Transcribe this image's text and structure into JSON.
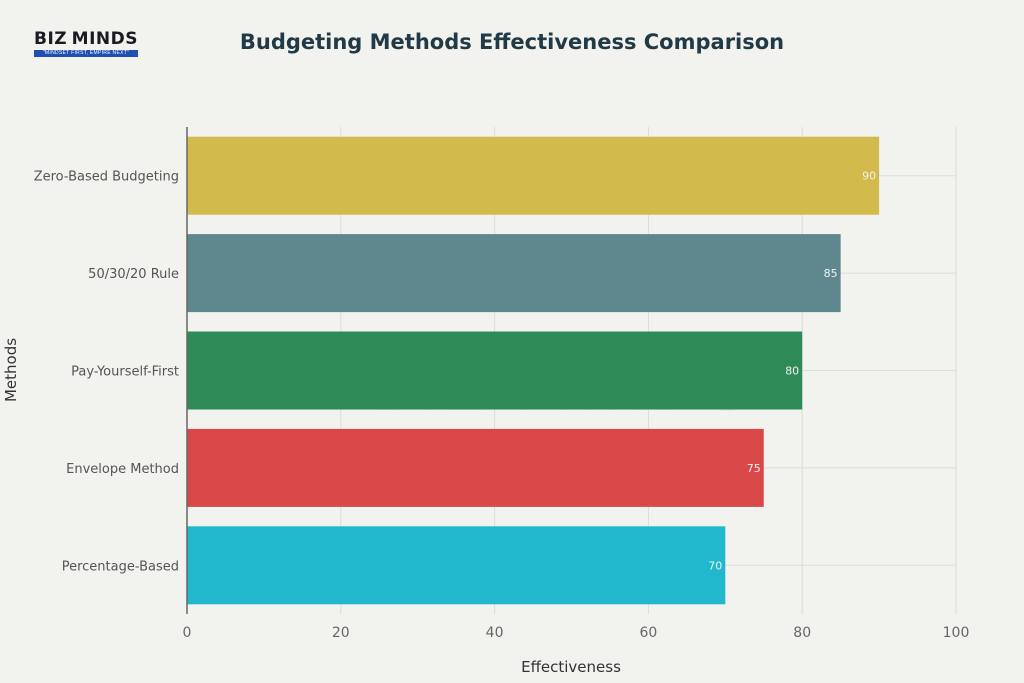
{
  "logo": {
    "word_left": "BIZ",
    "word_right": "MINDS",
    "tagline": "\"MINDSET FIRST, EMPIRE NEXT\""
  },
  "watermark": "BIZ MINDS",
  "chart_data": {
    "type": "bar",
    "orientation": "horizontal",
    "title": "Budgeting Methods Effectiveness Comparison",
    "xlabel": "Effectiveness",
    "ylabel": "Methods",
    "xlim": [
      0,
      100
    ],
    "xticks": [
      0,
      20,
      40,
      60,
      80,
      100
    ],
    "grid": true,
    "categories": [
      "Zero-Based Budgeting",
      "50/30/20 Rule",
      "Pay-Yourself-First",
      "Envelope Method",
      "Percentage-Based"
    ],
    "values": [
      90,
      85,
      80,
      75,
      70
    ],
    "colors": [
      "#d2ba4c",
      "#5e878e",
      "#2e8a57",
      "#d94848",
      "#21b8cd"
    ]
  }
}
